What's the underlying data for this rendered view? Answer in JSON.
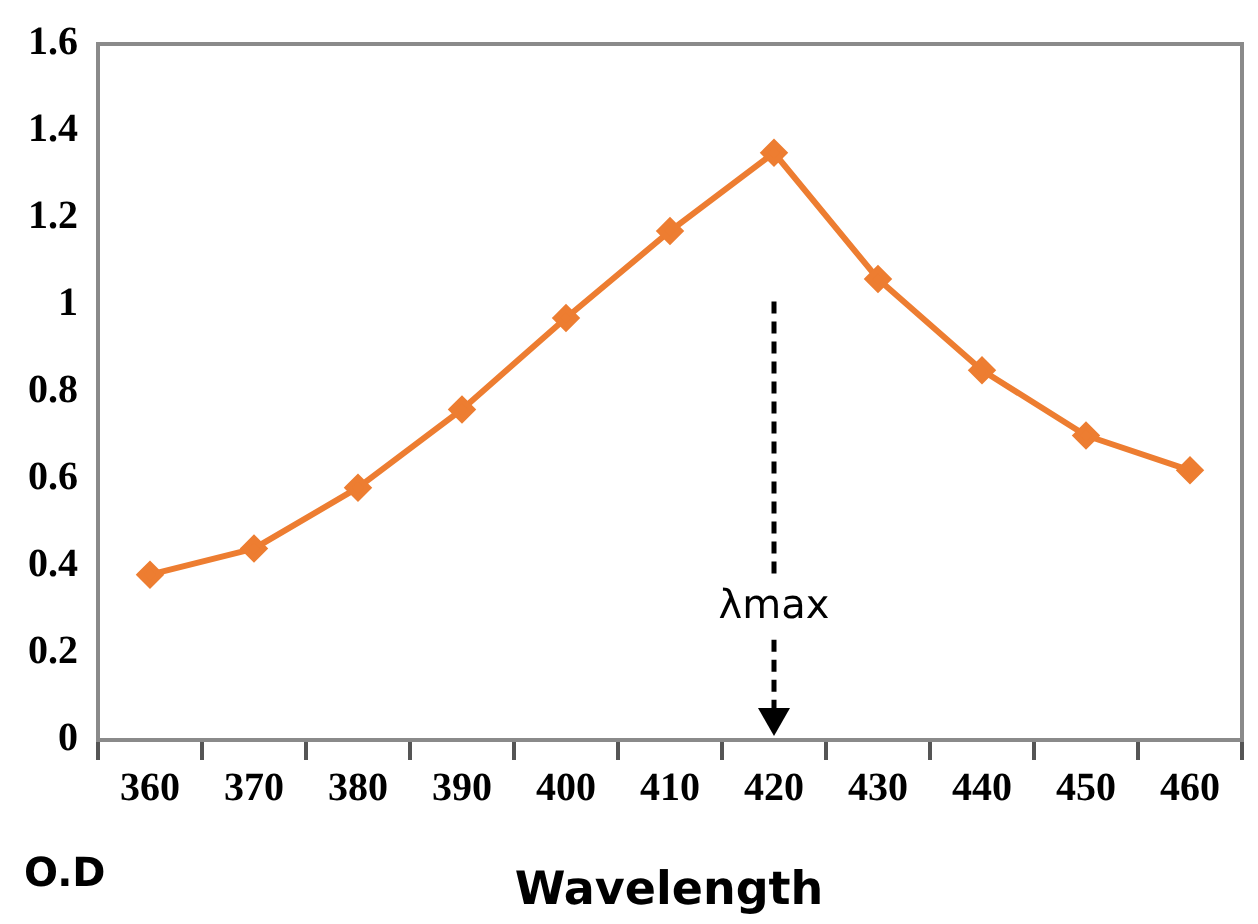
{
  "chart_data": {
    "type": "line",
    "xlabel": "Wavelength",
    "ylabel": "O.D",
    "categories": [
      "360",
      "370",
      "380",
      "390",
      "400",
      "410",
      "420",
      "430",
      "440",
      "450",
      "460"
    ],
    "series": [
      {
        "color": "#ed7d31",
        "values": [
          0.38,
          0.44,
          0.58,
          0.76,
          0.97,
          1.17,
          1.35,
          1.06,
          0.85,
          0.7,
          0.62
        ]
      }
    ],
    "ylim": [
      0,
      1.6
    ],
    "yticks": [
      0,
      0.2,
      0.4,
      0.6,
      0.8,
      1,
      1.2,
      1.4,
      1.6
    ],
    "grid": false,
    "legend": false,
    "marker": "diamond",
    "line_style": "solid",
    "annotations": [
      "λmax"
    ]
  }
}
